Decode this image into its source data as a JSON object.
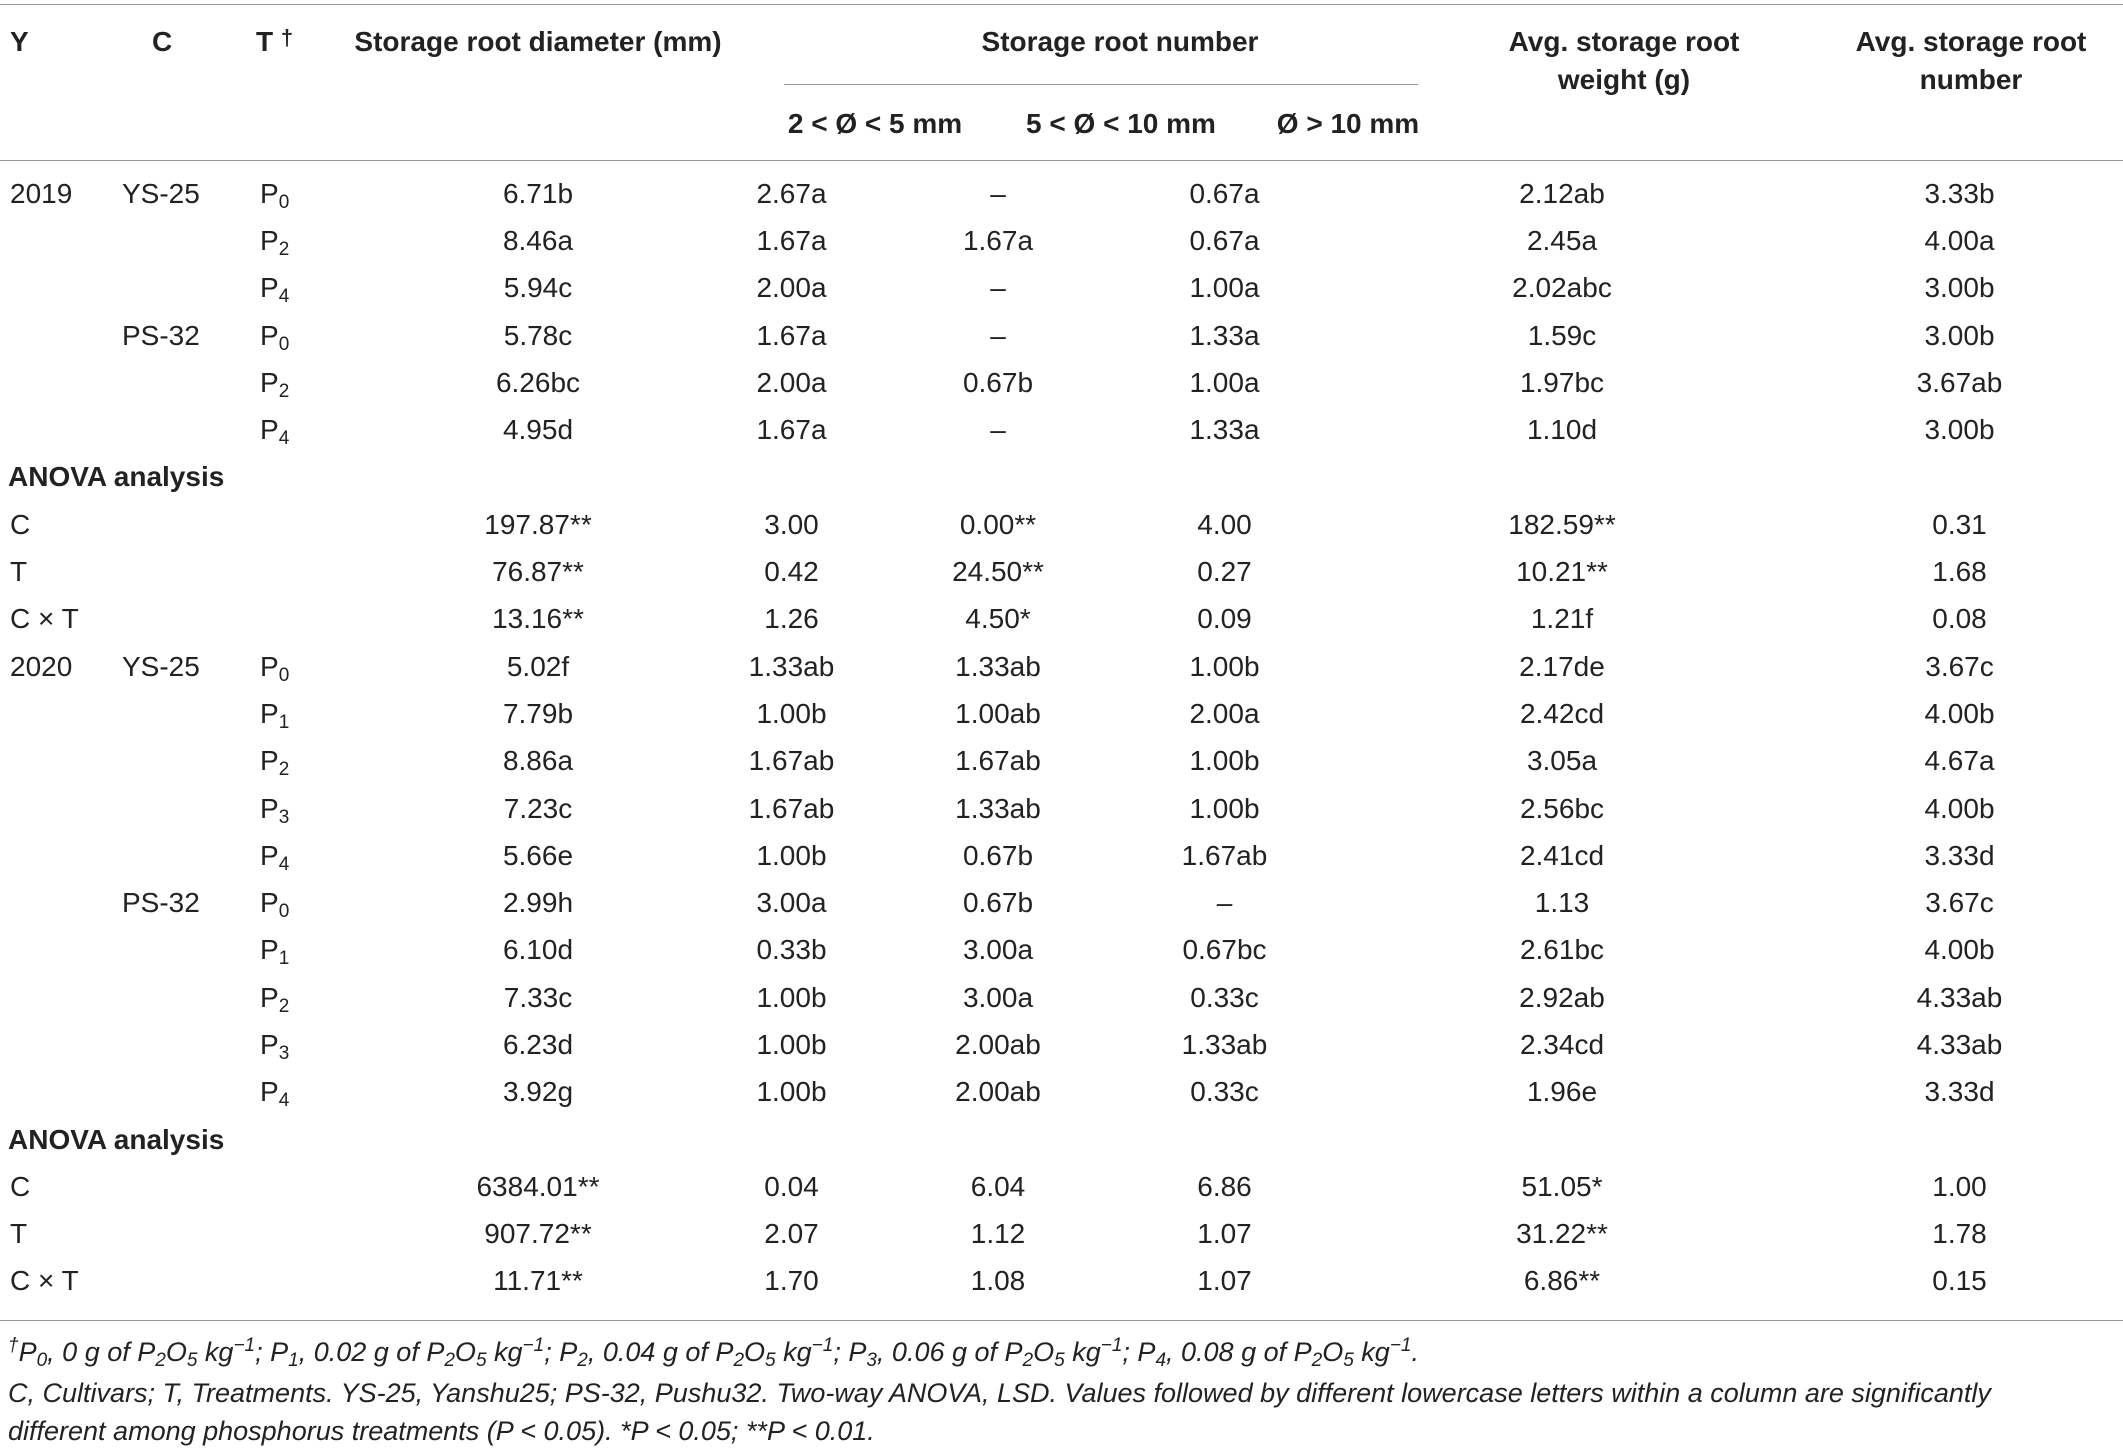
{
  "header": {
    "y": "Y",
    "c": "C",
    "t": "T",
    "t_mark": "†",
    "diameter": "Storage root diameter (mm)",
    "number": "Storage root number",
    "sub1": "2 < Ø < 5 mm",
    "sub2": "5 < Ø < 10 mm",
    "sub3": "Ø > 10 mm",
    "weight_1": "Avg. storage root",
    "weight_2": "weight (g)",
    "avgnum_1": "Avg. storage root",
    "avgnum_2": "number"
  },
  "rows": [
    {
      "year": "2019",
      "cultivar": "YS-25",
      "t": "P",
      "tsub": "0",
      "d": "6.71b",
      "n1": "2.67a",
      "n2": "–",
      "n3": "0.67a",
      "w": "2.12ab",
      "an": "3.33b"
    },
    {
      "year": "",
      "cultivar": "",
      "t": "P",
      "tsub": "2",
      "d": "8.46a",
      "n1": "1.67a",
      "n2": "1.67a",
      "n3": "0.67a",
      "w": "2.45a",
      "an": "4.00a"
    },
    {
      "year": "",
      "cultivar": "",
      "t": "P",
      "tsub": "4",
      "d": "5.94c",
      "n1": "2.00a",
      "n2": "–",
      "n3": "1.00a",
      "w": "2.02abc",
      "an": "3.00b"
    },
    {
      "year": "",
      "cultivar": "PS-32",
      "t": "P",
      "tsub": "0",
      "d": "5.78c",
      "n1": "1.67a",
      "n2": "–",
      "n3": "1.33a",
      "w": "1.59c",
      "an": "3.00b"
    },
    {
      "year": "",
      "cultivar": "",
      "t": "P",
      "tsub": "2",
      "d": "6.26bc",
      "n1": "2.00a",
      "n2": "0.67b",
      "n3": "1.00a",
      "w": "1.97bc",
      "an": "3.67ab"
    },
    {
      "year": "",
      "cultivar": "",
      "t": "P",
      "tsub": "4",
      "d": "4.95d",
      "n1": "1.67a",
      "n2": "–",
      "n3": "1.33a",
      "w": "1.10d",
      "an": "3.00b"
    },
    {
      "section": "ANOVA analysis"
    },
    {
      "label": "C",
      "d": "197.87**",
      "n1": "3.00",
      "n2": "0.00**",
      "n3": "4.00",
      "w": "182.59**",
      "an": "0.31"
    },
    {
      "label": "T",
      "d": "76.87**",
      "n1": "0.42",
      "n2": "24.50**",
      "n3": "0.27",
      "w": "10.21**",
      "an": "1.68"
    },
    {
      "label": "C × T",
      "d": "13.16**",
      "n1": "1.26",
      "n2": "4.50*",
      "n3": "0.09",
      "w": "1.21f",
      "an": "0.08"
    },
    {
      "year": "2020",
      "cultivar": "YS-25",
      "t": "P",
      "tsub": "0",
      "d": "5.02f",
      "n1": "1.33ab",
      "n2": "1.33ab",
      "n3": "1.00b",
      "w": "2.17de",
      "an": "3.67c"
    },
    {
      "year": "",
      "cultivar": "",
      "t": "P",
      "tsub": "1",
      "d": "7.79b",
      "n1": "1.00b",
      "n2": "1.00ab",
      "n3": "2.00a",
      "w": "2.42cd",
      "an": "4.00b"
    },
    {
      "year": "",
      "cultivar": "",
      "t": "P",
      "tsub": "2",
      "d": "8.86a",
      "n1": "1.67ab",
      "n2": "1.67ab",
      "n3": "1.00b",
      "w": "3.05a",
      "an": "4.67a"
    },
    {
      "year": "",
      "cultivar": "",
      "t": "P",
      "tsub": "3",
      "d": "7.23c",
      "n1": "1.67ab",
      "n2": "1.33ab",
      "n3": "1.00b",
      "w": "2.56bc",
      "an": "4.00b"
    },
    {
      "year": "",
      "cultivar": "",
      "t": "P",
      "tsub": "4",
      "d": "5.66e",
      "n1": "1.00b",
      "n2": "0.67b",
      "n3": "1.67ab",
      "w": "2.41cd",
      "an": "3.33d"
    },
    {
      "year": "",
      "cultivar": "PS-32",
      "t": "P",
      "tsub": "0",
      "d": "2.99h",
      "n1": "3.00a",
      "n2": "0.67b",
      "n3": "–",
      "w": "1.13",
      "an": "3.67c"
    },
    {
      "year": "",
      "cultivar": "",
      "t": "P",
      "tsub": "1",
      "d": "6.10d",
      "n1": "0.33b",
      "n2": "3.00a",
      "n3": "0.67bc",
      "w": "2.61bc",
      "an": "4.00b"
    },
    {
      "year": "",
      "cultivar": "",
      "t": "P",
      "tsub": "2",
      "d": "7.33c",
      "n1": "1.00b",
      "n2": "3.00a",
      "n3": "0.33c",
      "w": "2.92ab",
      "an": "4.33ab"
    },
    {
      "year": "",
      "cultivar": "",
      "t": "P",
      "tsub": "3",
      "d": "6.23d",
      "n1": "1.00b",
      "n2": "2.00ab",
      "n3": "1.33ab",
      "w": "2.34cd",
      "an": "4.33ab"
    },
    {
      "year": "",
      "cultivar": "",
      "t": "P",
      "tsub": "4",
      "d": "3.92g",
      "n1": "1.00b",
      "n2": "2.00ab",
      "n3": "0.33c",
      "w": "1.96e",
      "an": "3.33d"
    },
    {
      "section": "ANOVA analysis"
    },
    {
      "label": "C",
      "d": "6384.01**",
      "n1": "0.04",
      "n2": "6.04",
      "n3": "6.86",
      "w": "51.05*",
      "an": "1.00"
    },
    {
      "label": "T",
      "d": "907.72**",
      "n1": "2.07",
      "n2": "1.12",
      "n3": "1.07",
      "w": "31.22**",
      "an": "1.78"
    },
    {
      "label": "C × T",
      "d": "11.71**",
      "n1": "1.70",
      "n2": "1.08",
      "n3": "1.07",
      "w": "6.86**",
      "an": "0.15"
    }
  ],
  "footnote": {
    "mark": "†",
    "p0": "P",
    "p0_sub": "0",
    "p0_text": ", 0 g of P",
    "p1_text": ", 0.02 g of P",
    "p2_text": ", 0.04 g of P",
    "p3_text": ", 0.06 g of P",
    "p4_text": ", 0.08 g of P",
    "p2o5_sub1": "2",
    "o": "O",
    "p2o5_sub2": "5",
    "kg": " kg",
    "exp": "−1",
    "sep": "; ",
    "end": ".",
    "line2": "C, Cultivars; T, Treatments. YS-25, Yanshu25; PS-32, Pushu32. Two-way ANOVA, LSD. Values followed by different lowercase letters within a column are significantly",
    "line3": "different among phosphorus treatments (P < 0.05). *P < 0.05; **P < 0.01."
  }
}
